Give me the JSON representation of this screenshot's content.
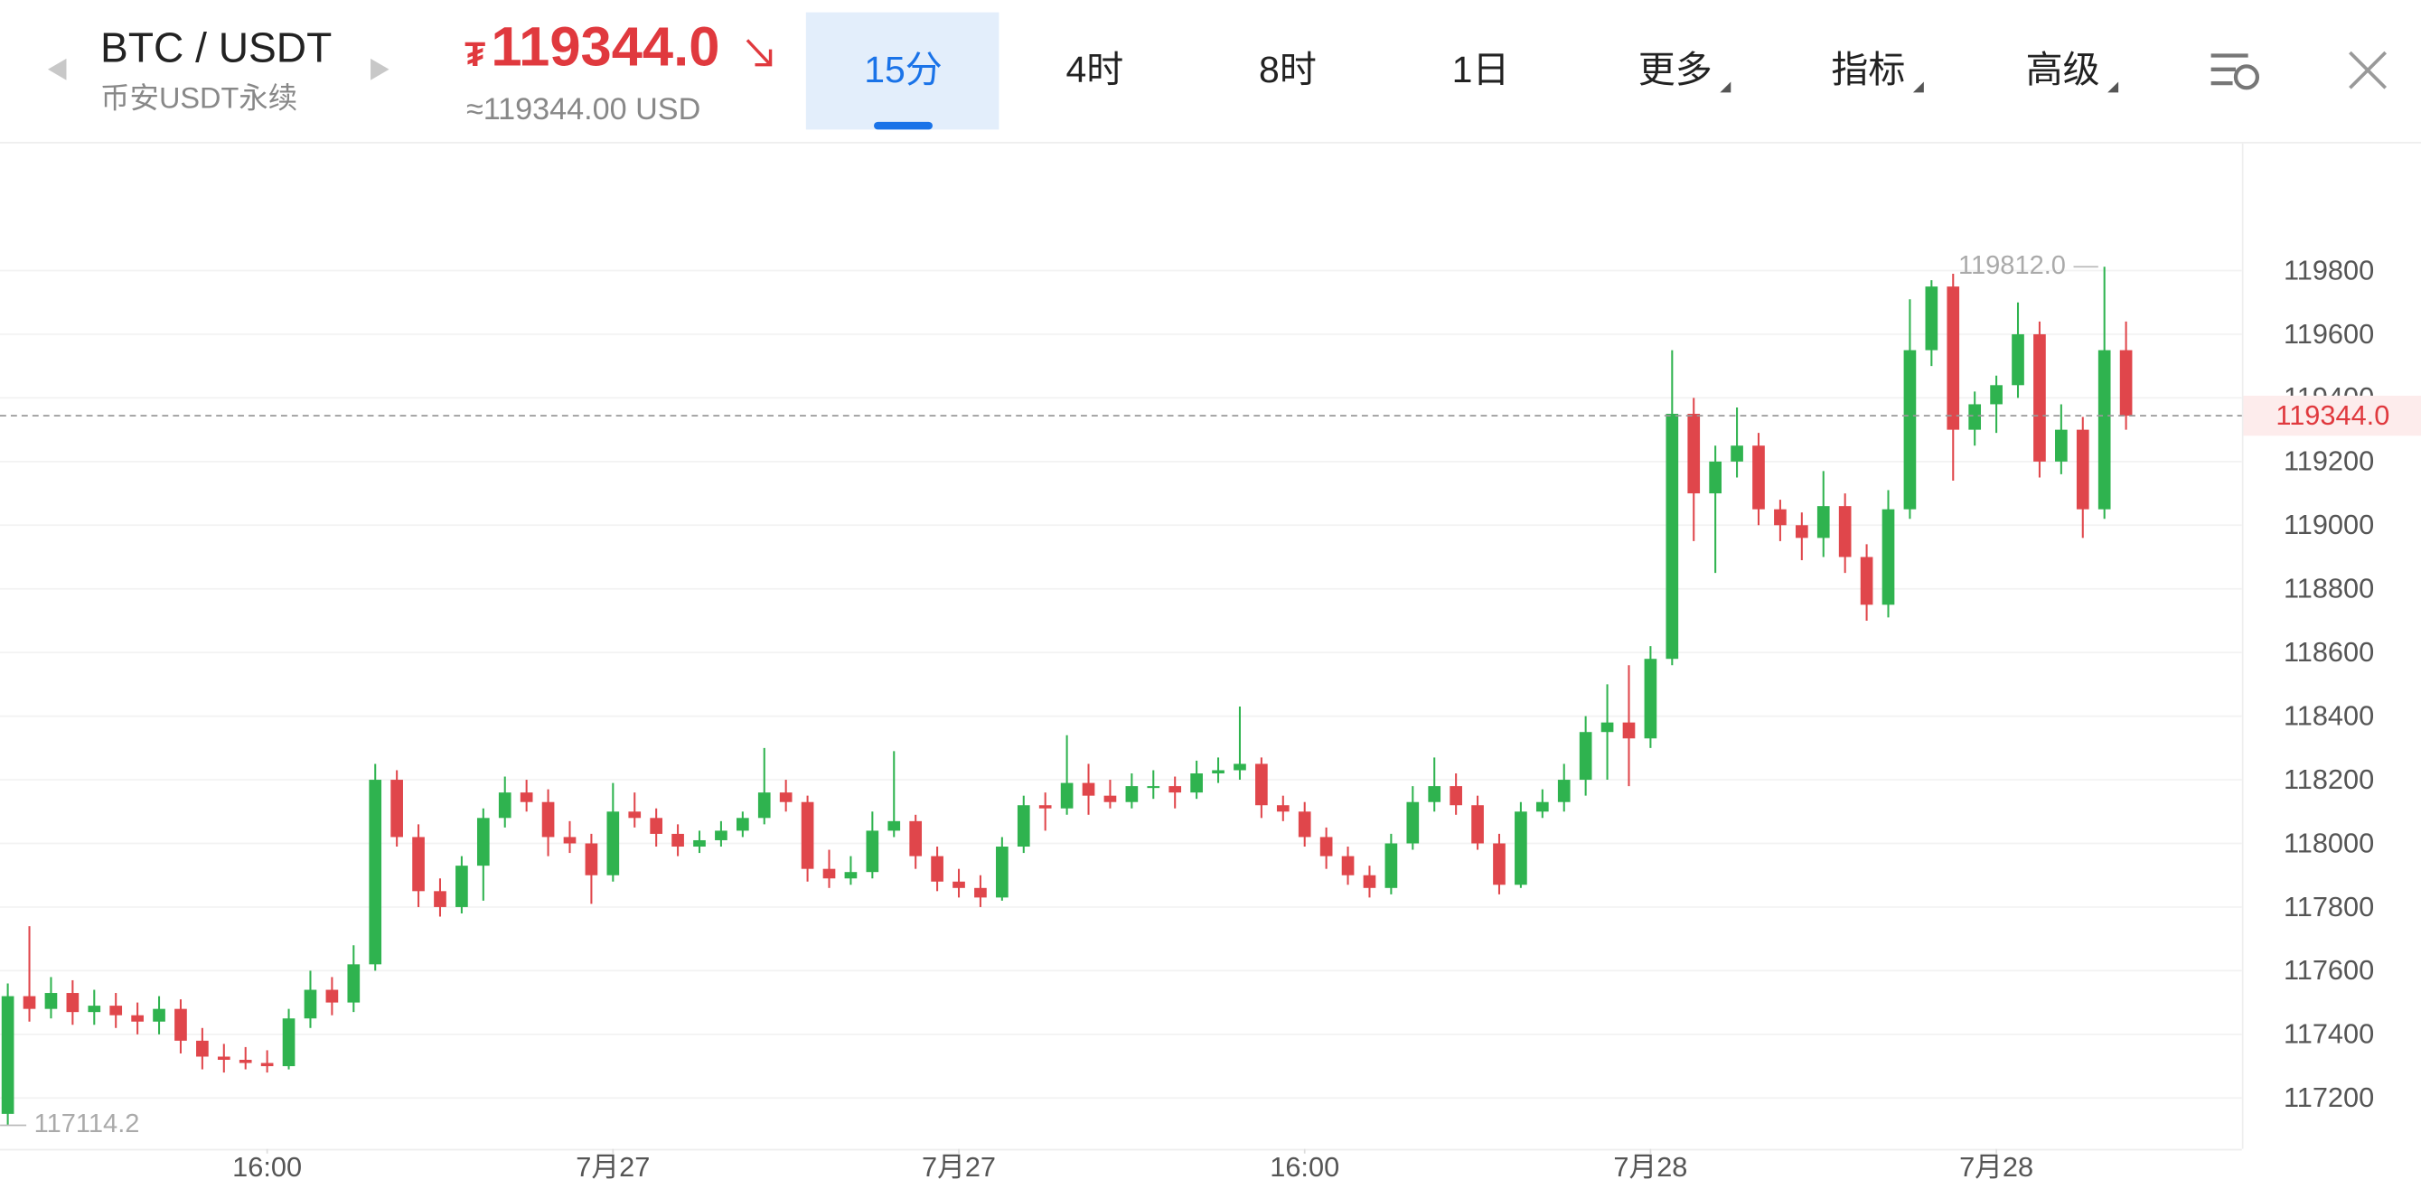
{
  "header": {
    "symbol": "BTC / USDT",
    "market": "币安USDT永续",
    "price_symbol": "₮",
    "price": "119344.0",
    "price_usd": "≈119344.00 USD",
    "tabs": [
      "15分",
      "4时",
      "8时",
      "1日",
      "更多",
      "指标",
      "高级"
    ],
    "selected_tab": 0
  },
  "chart_data": {
    "type": "candlestick",
    "up_color": "#2fb34f",
    "down_color": "#e0464b",
    "grid": true,
    "ylim": [
      117040,
      120190
    ],
    "yticks": [
      117200,
      117400,
      117600,
      117800,
      118000,
      118200,
      118400,
      118600,
      118800,
      119000,
      119200,
      119400,
      119600,
      119800
    ],
    "xlim": [
      -0.36,
      103.36
    ],
    "xticks": [
      {
        "value": 12,
        "label": "16:00"
      },
      {
        "value": 28,
        "label": "7月27"
      },
      {
        "value": 44,
        "label": "7月27"
      },
      {
        "value": 60,
        "label": "16:00"
      },
      {
        "value": 76,
        "label": "7月28"
      },
      {
        "value": 92,
        "label": "7月28"
      }
    ],
    "max_label": "119812.0",
    "min_label": "117114.2",
    "last_price": 119344.0,
    "last_price_label": "119344.0",
    "open": [
      117150,
      117520,
      117480,
      117530,
      117470,
      117490,
      117460,
      117440,
      117480,
      117380,
      117330,
      117320,
      117310,
      117300,
      117450,
      117540,
      117500,
      117620,
      118200,
      118020,
      117850,
      117800,
      117930,
      118080,
      118160,
      118130,
      118020,
      118000,
      117900,
      118100,
      118080,
      118030,
      117990,
      118010,
      118040,
      118080,
      118160,
      118130,
      117920,
      117890,
      117910,
      118040,
      118070,
      117960,
      117880,
      117860,
      117830,
      117990,
      118120,
      118110,
      118190,
      118150,
      118130,
      118180,
      118180,
      118160,
      118220,
      118230,
      118250,
      118120,
      118100,
      118020,
      117960,
      117900,
      117860,
      118000,
      118130,
      118180,
      118120,
      118000,
      117870,
      118100,
      118130,
      118200,
      118350,
      118380,
      118330,
      118580,
      119350,
      119100,
      119200,
      119250,
      119050,
      119000,
      118960,
      119060,
      118900,
      118750,
      119050,
      119550,
      119750,
      119300,
      119380,
      119440,
      119600,
      119200,
      119300,
      119050,
      119550
    ],
    "high": [
      117560,
      117740,
      117580,
      117570,
      117540,
      117530,
      117500,
      117520,
      117510,
      117420,
      117370,
      117360,
      117350,
      117480,
      117600,
      117580,
      117680,
      118250,
      118230,
      118060,
      117890,
      117960,
      118110,
      118210,
      118200,
      118170,
      118070,
      118030,
      118190,
      118160,
      118110,
      118060,
      118040,
      118070,
      118100,
      118300,
      118200,
      118150,
      117980,
      117960,
      118100,
      118290,
      118090,
      117990,
      117920,
      117900,
      118020,
      118150,
      118160,
      118340,
      118250,
      118200,
      118220,
      118230,
      118210,
      118260,
      118270,
      118430,
      118270,
      118150,
      118130,
      118050,
      117990,
      117930,
      118030,
      118180,
      118270,
      118220,
      118150,
      118030,
      118130,
      118170,
      118250,
      118400,
      118500,
      118560,
      118620,
      119550,
      119400,
      119250,
      119370,
      119290,
      119080,
      119040,
      119170,
      119100,
      118940,
      119110,
      119710,
      119770,
      119790,
      119420,
      119470,
      119700,
      119640,
      119380,
      119340,
      119812.0,
      119640
    ],
    "low": [
      117114.2,
      117440,
      117450,
      117430,
      117430,
      117420,
      117400,
      117400,
      117340,
      117290,
      117280,
      117290,
      117280,
      117290,
      117420,
      117460,
      117470,
      117600,
      117990,
      117800,
      117770,
      117780,
      117820,
      118050,
      118100,
      117960,
      117970,
      117810,
      117880,
      118050,
      117990,
      117960,
      117970,
      117990,
      118020,
      118060,
      118100,
      117880,
      117860,
      117870,
      117890,
      118020,
      117920,
      117850,
      117830,
      117800,
      117820,
      117970,
      118040,
      118090,
      118090,
      118110,
      118110,
      118140,
      118110,
      118140,
      118190,
      118200,
      118080,
      118070,
      117990,
      117920,
      117870,
      117830,
      117840,
      117980,
      118100,
      118090,
      117980,
      117840,
      117860,
      118080,
      118100,
      118150,
      118200,
      118180,
      118300,
      118560,
      118950,
      118850,
      119150,
      119000,
      118950,
      118890,
      118900,
      118850,
      118700,
      118710,
      119020,
      119500,
      119140,
      119250,
      119290,
      119400,
      119150,
      119160,
      118960,
      119020,
      119300
    ],
    "close": [
      117520,
      117480,
      117530,
      117470,
      117490,
      117460,
      117440,
      117480,
      117380,
      117330,
      117320,
      117310,
      117300,
      117450,
      117540,
      117500,
      117620,
      118200,
      118020,
      117850,
      117800,
      117930,
      118080,
      118160,
      118130,
      118020,
      118000,
      117900,
      118100,
      118080,
      118030,
      117990,
      118010,
      118040,
      118080,
      118160,
      118130,
      117920,
      117890,
      117910,
      118040,
      118070,
      117960,
      117880,
      117860,
      117830,
      117990,
      118120,
      118110,
      118190,
      118150,
      118130,
      118180,
      118180,
      118160,
      118220,
      118230,
      118250,
      118120,
      118100,
      118020,
      117960,
      117900,
      117860,
      118000,
      118130,
      118180,
      118120,
      118000,
      117870,
      118100,
      118130,
      118200,
      118350,
      118380,
      118330,
      118580,
      119350,
      119100,
      119200,
      119250,
      119050,
      119000,
      118960,
      119060,
      118900,
      118750,
      119050,
      119550,
      119750,
      119300,
      119380,
      119440,
      119600,
      119200,
      119300,
      119050,
      119550,
      119344
    ]
  }
}
